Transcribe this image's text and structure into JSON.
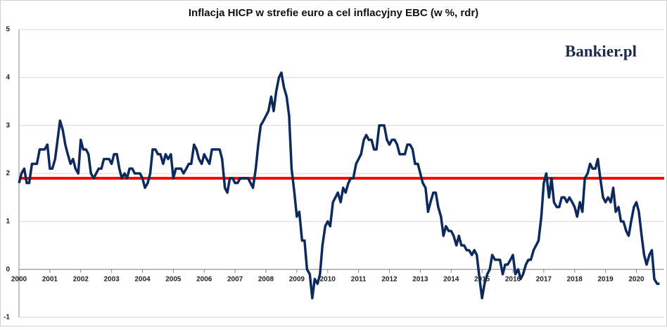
{
  "chart_data": {
    "type": "line",
    "title": "Inflacja HICP w strefie euro a cel inflacyjny EBC (w %, rdr)",
    "logo": "Bankier.pl",
    "xlim": [
      2000,
      2020.9
    ],
    "ylim": [
      -1,
      5
    ],
    "xticks": [
      2000,
      2001,
      2002,
      2003,
      2004,
      2005,
      2006,
      2007,
      2008,
      2009,
      2010,
      2011,
      2012,
      2013,
      2014,
      2015,
      2016,
      2017,
      2018,
      2019,
      2020
    ],
    "yticks": [
      -1,
      0,
      1,
      2,
      3,
      4,
      5
    ],
    "grid": true,
    "reference_line": {
      "value": 1.9,
      "color": "#ff0000"
    },
    "series": [
      {
        "color": "#0d2a5e",
        "x": [
          2000,
          2000.08,
          2000.17,
          2000.25,
          2000.33,
          2000.42,
          2000.5,
          2000.58,
          2000.67,
          2000.75,
          2000.83,
          2000.92,
          2001,
          2001.08,
          2001.17,
          2001.25,
          2001.33,
          2001.42,
          2001.5,
          2001.58,
          2001.67,
          2001.75,
          2001.83,
          2001.92,
          2002,
          2002.08,
          2002.17,
          2002.25,
          2002.33,
          2002.42,
          2002.5,
          2002.58,
          2002.67,
          2002.75,
          2002.83,
          2002.92,
          2003,
          2003.08,
          2003.17,
          2003.25,
          2003.33,
          2003.42,
          2003.5,
          2003.58,
          2003.67,
          2003.75,
          2003.83,
          2003.92,
          2004,
          2004.08,
          2004.17,
          2004.25,
          2004.33,
          2004.42,
          2004.5,
          2004.58,
          2004.67,
          2004.75,
          2004.83,
          2004.92,
          2005,
          2005.08,
          2005.17,
          2005.25,
          2005.33,
          2005.42,
          2005.5,
          2005.58,
          2005.67,
          2005.75,
          2005.83,
          2005.92,
          2006,
          2006.08,
          2006.17,
          2006.25,
          2006.33,
          2006.42,
          2006.5,
          2006.58,
          2006.67,
          2006.75,
          2006.83,
          2006.92,
          2007,
          2007.08,
          2007.17,
          2007.25,
          2007.33,
          2007.42,
          2007.5,
          2007.58,
          2007.67,
          2007.75,
          2007.83,
          2007.92,
          2008,
          2008.08,
          2008.17,
          2008.25,
          2008.33,
          2008.42,
          2008.5,
          2008.58,
          2008.67,
          2008.75,
          2008.83,
          2008.92,
          2009,
          2009.08,
          2009.17,
          2009.25,
          2009.33,
          2009.42,
          2009.5,
          2009.58,
          2009.67,
          2009.75,
          2009.83,
          2009.92,
          2010,
          2010.08,
          2010.17,
          2010.25,
          2010.33,
          2010.42,
          2010.5,
          2010.58,
          2010.67,
          2010.75,
          2010.83,
          2010.92,
          2011,
          2011.08,
          2011.17,
          2011.25,
          2011.33,
          2011.42,
          2011.5,
          2011.58,
          2011.67,
          2011.75,
          2011.83,
          2011.92,
          2012,
          2012.08,
          2012.17,
          2012.25,
          2012.33,
          2012.42,
          2012.5,
          2012.58,
          2012.67,
          2012.75,
          2012.83,
          2012.92,
          2013,
          2013.08,
          2013.17,
          2013.25,
          2013.33,
          2013.42,
          2013.5,
          2013.58,
          2013.67,
          2013.75,
          2013.83,
          2013.92,
          2014,
          2014.08,
          2014.17,
          2014.25,
          2014.33,
          2014.42,
          2014.5,
          2014.58,
          2014.67,
          2014.75,
          2014.83,
          2014.92,
          2015,
          2015.08,
          2015.17,
          2015.25,
          2015.33,
          2015.42,
          2015.5,
          2015.58,
          2015.67,
          2015.75,
          2015.83,
          2015.92,
          2016,
          2016.08,
          2016.17,
          2016.25,
          2016.33,
          2016.42,
          2016.5,
          2016.58,
          2016.67,
          2016.75,
          2016.83,
          2016.92,
          2017,
          2017.08,
          2017.17,
          2017.25,
          2017.33,
          2017.42,
          2017.5,
          2017.58,
          2017.67,
          2017.75,
          2017.83,
          2017.92,
          2018,
          2018.08,
          2018.17,
          2018.25,
          2018.33,
          2018.42,
          2018.5,
          2018.58,
          2018.67,
          2018.75,
          2018.83,
          2018.92,
          2019,
          2019.08,
          2019.17,
          2019.25,
          2019.33,
          2019.42,
          2019.5,
          2019.58,
          2019.67,
          2019.75,
          2019.83,
          2019.92,
          2020,
          2020.08,
          2020.17,
          2020.25,
          2020.33,
          2020.42,
          2020.5,
          2020.58,
          2020.67,
          2020.75
        ],
        "values": [
          1.8,
          2.0,
          2.1,
          1.8,
          1.8,
          2.2,
          2.2,
          2.2,
          2.5,
          2.5,
          2.5,
          2.6,
          2.1,
          2.1,
          2.3,
          2.7,
          3.1,
          2.9,
          2.6,
          2.4,
          2.2,
          2.3,
          2.1,
          2.0,
          2.7,
          2.5,
          2.5,
          2.4,
          2.0,
          1.9,
          2.0,
          2.1,
          2.1,
          2.3,
          2.3,
          2.3,
          2.2,
          2.4,
          2.4,
          2.1,
          1.9,
          2.0,
          1.9,
          2.1,
          2.1,
          2.0,
          2.0,
          2.0,
          1.9,
          1.7,
          1.8,
          2.0,
          2.5,
          2.5,
          2.4,
          2.4,
          2.2,
          2.4,
          2.3,
          2.4,
          1.9,
          2.1,
          2.1,
          2.1,
          2.0,
          2.1,
          2.2,
          2.2,
          2.6,
          2.5,
          2.3,
          2.2,
          2.4,
          2.3,
          2.2,
          2.5,
          2.5,
          2.5,
          2.5,
          2.3,
          1.7,
          1.6,
          1.9,
          1.9,
          1.8,
          1.8,
          1.9,
          1.9,
          1.9,
          1.9,
          1.8,
          1.7,
          2.1,
          2.6,
          3.0,
          3.1,
          3.2,
          3.3,
          3.6,
          3.3,
          3.7,
          4.0,
          4.1,
          3.8,
          3.6,
          3.2,
          2.1,
          1.6,
          1.1,
          1.2,
          0.6,
          0.6,
          0.0,
          -0.1,
          -0.6,
          -0.2,
          -0.3,
          -0.1,
          0.5,
          0.9,
          1.0,
          0.9,
          1.4,
          1.5,
          1.6,
          1.4,
          1.7,
          1.6,
          1.8,
          1.9,
          1.9,
          2.2,
          2.3,
          2.4,
          2.7,
          2.8,
          2.7,
          2.7,
          2.5,
          2.5,
          3.0,
          3.0,
          3.0,
          2.7,
          2.6,
          2.7,
          2.7,
          2.6,
          2.4,
          2.4,
          2.4,
          2.6,
          2.6,
          2.5,
          2.2,
          2.2,
          2.0,
          1.8,
          1.7,
          1.2,
          1.4,
          1.6,
          1.6,
          1.3,
          1.1,
          0.7,
          0.9,
          0.8,
          0.8,
          0.7,
          0.5,
          0.7,
          0.5,
          0.5,
          0.4,
          0.4,
          0.3,
          0.4,
          0.3,
          -0.2,
          -0.6,
          -0.3,
          -0.1,
          0.0,
          0.3,
          0.2,
          0.2,
          0.2,
          -0.1,
          0.1,
          0.1,
          0.2,
          0.3,
          -0.1,
          0.0,
          -0.2,
          -0.1,
          0.1,
          0.2,
          0.2,
          0.4,
          0.5,
          0.6,
          1.1,
          1.8,
          2.0,
          1.5,
          1.9,
          1.4,
          1.3,
          1.3,
          1.5,
          1.5,
          1.4,
          1.5,
          1.4,
          1.3,
          1.1,
          1.4,
          1.2,
          1.9,
          2.0,
          2.2,
          2.1,
          2.1,
          2.3,
          1.9,
          1.5,
          1.4,
          1.5,
          1.4,
          1.7,
          1.2,
          1.3,
          1.0,
          1.0,
          0.8,
          0.7,
          1.0,
          1.3,
          1.4,
          1.2,
          0.7,
          0.3,
          0.1,
          0.3,
          0.4,
          -0.2,
          -0.3,
          -0.3
        ]
      }
    ]
  }
}
